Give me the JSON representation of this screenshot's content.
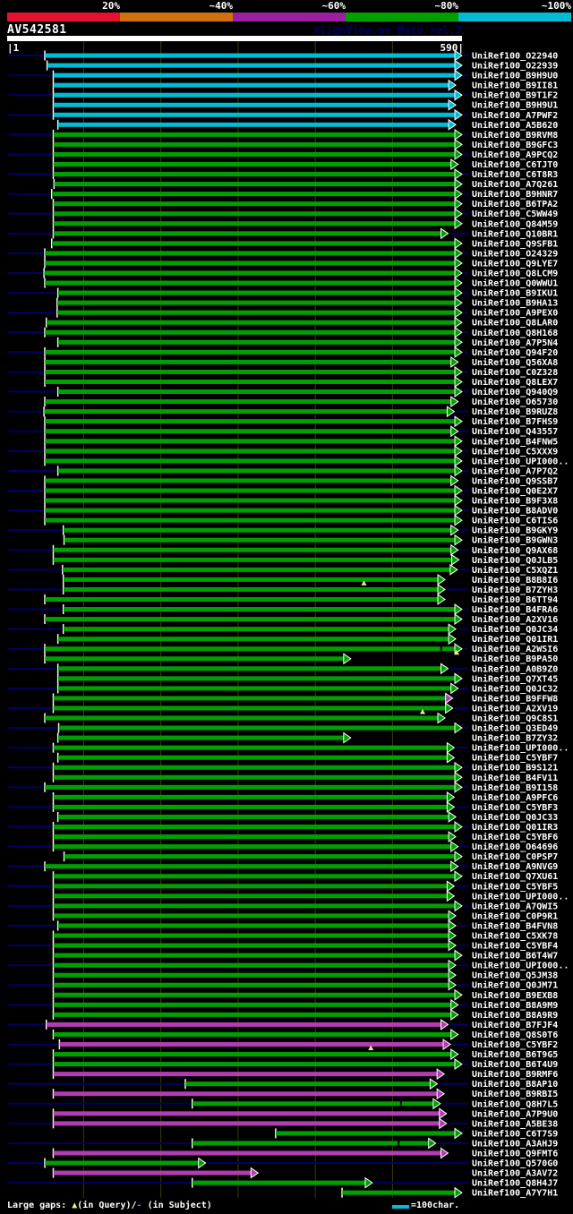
{
  "palette": {
    "red": "#e8112d",
    "orange": "#d2700e",
    "purple": "#9b1fa0",
    "green": "#00a000",
    "cyan": "#00bcd4",
    "magenta": "#b23cb2",
    "navy": "#000066",
    "grid": "#3c3c00",
    "yellow": "#eeee88",
    "dash_blue": "#4488ff",
    "white": "#ffffff"
  },
  "header": {
    "title": "AV542581",
    "watermark": "AlignView.pm Beta rel.7",
    "scale": [
      {
        "label": "20%",
        "color": "red"
      },
      {
        "label": "~40%",
        "color": "orange"
      },
      {
        "label": "~60%",
        "color": "purple"
      },
      {
        "label": "~80%",
        "color": "green"
      },
      {
        "label": "~100%",
        "color": "cyan"
      }
    ],
    "ruler": {
      "start_label": "|1",
      "end_label": "590|"
    }
  },
  "footer": {
    "gaps_prefix": "Large gaps: ",
    "query_marker": "▲",
    "gaps_mid": "(in Query)/",
    "subject_marker": "-",
    "gaps_suffix": " (in Subject)",
    "legend_text": "=100char."
  },
  "chart_data": {
    "type": "alignment-overview",
    "query": {
      "name": "AV542581",
      "start": 1,
      "end": 590
    },
    "gridlines": [
      100,
      200,
      300,
      400,
      500
    ],
    "identity_bins": [
      "20%",
      "~40%",
      "~60%",
      "~80%",
      "~100%"
    ],
    "hits": [
      {
        "id": "UniRef100_O22940",
        "color": "cyan",
        "start": 50,
        "end": 590
      },
      {
        "id": "UniRef100_O22939",
        "color": "cyan",
        "start": 53,
        "end": 590
      },
      {
        "id": "UniRef100_B9H9U0",
        "color": "cyan",
        "start": 61,
        "end": 590
      },
      {
        "id": "UniRef100_B9II81",
        "color": "cyan",
        "start": 61,
        "end": 582
      },
      {
        "id": "UniRef100_B9T1F2",
        "color": "cyan",
        "start": 61,
        "end": 590
      },
      {
        "id": "UniRef100_B9H9U1",
        "color": "cyan",
        "start": 61,
        "end": 582
      },
      {
        "id": "UniRef100_A7PWF2",
        "color": "cyan",
        "start": 61,
        "end": 590
      },
      {
        "id": "UniRef100_A5B620",
        "color": "cyan",
        "start": 67,
        "end": 582
      },
      {
        "id": "UniRef100_B9RVM8",
        "color": "green",
        "start": 61,
        "end": 590
      },
      {
        "id": "UniRef100_B9GFC3",
        "color": "green",
        "start": 61,
        "end": 590
      },
      {
        "id": "UniRef100_A9PCQ2",
        "color": "green",
        "start": 61,
        "end": 590
      },
      {
        "id": "UniRef100_C6TJT0",
        "color": "green",
        "start": 61,
        "end": 585
      },
      {
        "id": "UniRef100_C6T8R3",
        "color": "green",
        "start": 61,
        "end": 590
      },
      {
        "id": "UniRef100_A7Q261",
        "color": "green",
        "start": 62,
        "end": 590
      },
      {
        "id": "UniRef100_B9HNR7",
        "color": "green",
        "start": 59,
        "end": 590
      },
      {
        "id": "UniRef100_B6TPA2",
        "color": "green",
        "start": 61,
        "end": 590
      },
      {
        "id": "UniRef100_C5WW49",
        "color": "green",
        "start": 61,
        "end": 590
      },
      {
        "id": "UniRef100_Q84M59",
        "color": "green",
        "start": 61,
        "end": 590
      },
      {
        "id": "UniRef100_Q10BR1",
        "color": "green",
        "start": 61,
        "end": 572
      },
      {
        "id": "UniRef100_Q9SFB1",
        "color": "green",
        "start": 59,
        "end": 590
      },
      {
        "id": "UniRef100_O24329",
        "color": "green",
        "start": 50,
        "end": 590
      },
      {
        "id": "UniRef100_Q9LYE7",
        "color": "green",
        "start": 50,
        "end": 590
      },
      {
        "id": "UniRef100_Q8LCM9",
        "color": "green",
        "start": 49,
        "end": 590
      },
      {
        "id": "UniRef100_Q0WWU1",
        "color": "green",
        "start": 50,
        "end": 590
      },
      {
        "id": "UniRef100_B9IKU1",
        "color": "green",
        "start": 67,
        "end": 590
      },
      {
        "id": "UniRef100_B9HA13",
        "color": "green",
        "start": 66,
        "end": 590
      },
      {
        "id": "UniRef100_A9PEX0",
        "color": "green",
        "start": 66,
        "end": 590
      },
      {
        "id": "UniRef100_Q8LAR0",
        "color": "green",
        "start": 52,
        "end": 590
      },
      {
        "id": "UniRef100_Q8H168",
        "color": "green",
        "start": 50,
        "end": 590
      },
      {
        "id": "UniRef100_A7P5N4",
        "color": "green",
        "start": 67,
        "end": 590
      },
      {
        "id": "UniRef100_Q94F20",
        "color": "green",
        "start": 50,
        "end": 590
      },
      {
        "id": "UniRef100_Q56XA8",
        "color": "green",
        "start": 50,
        "end": 585
      },
      {
        "id": "UniRef100_C0Z328",
        "color": "green",
        "start": 50,
        "end": 590
      },
      {
        "id": "UniRef100_Q8LEX7",
        "color": "green",
        "start": 50,
        "end": 590
      },
      {
        "id": "UniRef100_Q940Q9",
        "color": "green",
        "start": 67,
        "end": 590
      },
      {
        "id": "UniRef100_O65730",
        "color": "green",
        "start": 50,
        "end": 585
      },
      {
        "id": "UniRef100_B9RUZ8",
        "color": "green",
        "start": 49,
        "end": 580
      },
      {
        "id": "UniRef100_B7FHS9",
        "color": "green",
        "start": 50,
        "end": 590
      },
      {
        "id": "UniRef100_Q43557",
        "color": "green",
        "start": 50,
        "end": 585
      },
      {
        "id": "UniRef100_B4FNW5",
        "color": "green",
        "start": 50,
        "end": 590
      },
      {
        "id": "UniRef100_C5XXX9",
        "color": "green",
        "start": 50,
        "end": 590
      },
      {
        "id": "UniRef100_UPI000..",
        "color": "green",
        "start": 50,
        "end": 590
      },
      {
        "id": "UniRef100_A7P7Q2",
        "color": "green",
        "start": 67,
        "end": 590
      },
      {
        "id": "UniRef100_Q9SSB7",
        "color": "green",
        "start": 50,
        "end": 585
      },
      {
        "id": "UniRef100_Q0E2X7",
        "color": "green",
        "start": 50,
        "end": 590
      },
      {
        "id": "UniRef100_B9F3X8",
        "color": "green",
        "start": 50,
        "end": 590
      },
      {
        "id": "UniRef100_B8ADV0",
        "color": "green",
        "start": 50,
        "end": 590
      },
      {
        "id": "UniRef100_C6TIS6",
        "color": "green",
        "start": 50,
        "end": 590
      },
      {
        "id": "UniRef100_B9GKY9",
        "color": "green",
        "start": 74,
        "end": 585
      },
      {
        "id": "UniRef100_B9GWN3",
        "color": "green",
        "start": 75,
        "end": 590
      },
      {
        "id": "UniRef100_Q9AX68",
        "color": "green",
        "start": 61,
        "end": 585
      },
      {
        "id": "UniRef100_Q0JLB5",
        "color": "green",
        "start": 61,
        "end": 586
      },
      {
        "id": "UniRef100_C5XQZ1",
        "color": "green",
        "start": 73,
        "end": 584
      },
      {
        "id": "UniRef100_B8B8I6",
        "color": "green",
        "start": 74,
        "end": 568,
        "gaps": [
          {
            "t": "query",
            "p": 463
          }
        ]
      },
      {
        "id": "UniRef100_B7ZYH3",
        "color": "green",
        "start": 74,
        "end": 568
      },
      {
        "id": "UniRef100_B6TT94",
        "color": "green",
        "start": 50,
        "end": 568
      },
      {
        "id": "UniRef100_B4FRA6",
        "color": "green",
        "start": 74,
        "end": 590
      },
      {
        "id": "UniRef100_A2XV16",
        "color": "green",
        "start": 50,
        "end": 590
      },
      {
        "id": "UniRef100_Q0JC34",
        "color": "green",
        "start": 74,
        "end": 582
      },
      {
        "id": "UniRef100_Q01IR1",
        "color": "green",
        "start": 67,
        "end": 582
      },
      {
        "id": "UniRef100_A2WSI6",
        "color": "green",
        "start": 50,
        "end": 590,
        "gaps": [
          {
            "t": "subject",
            "p": 563
          },
          {
            "t": "query",
            "p": 583
          }
        ]
      },
      {
        "id": "UniRef100_B9PA50",
        "color": "green",
        "start": 50,
        "end": 446
      },
      {
        "id": "UniRef100_A0B9Z0",
        "color": "green",
        "start": 67,
        "end": 572
      },
      {
        "id": "UniRef100_Q7XT45",
        "color": "green",
        "start": 67,
        "end": 590
      },
      {
        "id": "UniRef100_Q0JC32",
        "color": "green",
        "start": 67,
        "end": 585
      },
      {
        "id": "UniRef100_B9FFW8",
        "color": "green",
        "start": 61,
        "end": 578,
        "head": "magenta"
      },
      {
        "id": "UniRef100_A2XV19",
        "color": "green",
        "start": 61,
        "end": 578,
        "gaps": [
          {
            "t": "query",
            "p": 539
          }
        ]
      },
      {
        "id": "UniRef100_Q9C8S1",
        "color": "green",
        "start": 50,
        "end": 568
      },
      {
        "id": "UniRef100_Q3ED49",
        "color": "green",
        "start": 68,
        "end": 590
      },
      {
        "id": "UniRef100_B7ZY32",
        "color": "green",
        "start": 67,
        "end": 446
      },
      {
        "id": "UniRef100_UPI000..",
        "color": "green",
        "start": 61,
        "end": 580
      },
      {
        "id": "UniRef100_C5YBF7",
        "color": "green",
        "start": 67,
        "end": 580
      },
      {
        "id": "UniRef100_B9S121",
        "color": "green",
        "start": 61,
        "end": 590
      },
      {
        "id": "UniRef100_B4FV11",
        "color": "green",
        "start": 61,
        "end": 590
      },
      {
        "id": "UniRef100_B9I158",
        "color": "green",
        "start": 50,
        "end": 590
      },
      {
        "id": "UniRef100_A9PFC6",
        "color": "green",
        "start": 61,
        "end": 580
      },
      {
        "id": "UniRef100_C5YBF3",
        "color": "green",
        "start": 61,
        "end": 580
      },
      {
        "id": "UniRef100_Q0JC33",
        "color": "green",
        "start": 67,
        "end": 582
      },
      {
        "id": "UniRef100_Q01IR3",
        "color": "green",
        "start": 61,
        "end": 590
      },
      {
        "id": "UniRef100_C5YBF6",
        "color": "green",
        "start": 61,
        "end": 582
      },
      {
        "id": "UniRef100_O64696",
        "color": "green",
        "start": 61,
        "end": 585
      },
      {
        "id": "UniRef100_C0PSP7",
        "color": "green",
        "start": 75,
        "end": 590
      },
      {
        "id": "UniRef100_A9NVG9",
        "color": "green",
        "start": 50,
        "end": 585
      },
      {
        "id": "UniRef100_Q7XU61",
        "color": "green",
        "start": 61,
        "end": 590
      },
      {
        "id": "UniRef100_C5YBF5",
        "color": "green",
        "start": 61,
        "end": 580
      },
      {
        "id": "UniRef100_UPI000..",
        "color": "green",
        "start": 61,
        "end": 580
      },
      {
        "id": "UniRef100_A7QWI5",
        "color": "green",
        "start": 61,
        "end": 590
      },
      {
        "id": "UniRef100_C0P9R1",
        "color": "green",
        "start": 61,
        "end": 582
      },
      {
        "id": "UniRef100_B4FVN8",
        "color": "green",
        "start": 67,
        "end": 582
      },
      {
        "id": "UniRef100_C5XK78",
        "color": "green",
        "start": 61,
        "end": 582
      },
      {
        "id": "UniRef100_C5YBF4",
        "color": "green",
        "start": 61,
        "end": 582
      },
      {
        "id": "UniRef100_B6T4W7",
        "color": "green",
        "start": 61,
        "end": 590
      },
      {
        "id": "UniRef100_UPI000..",
        "color": "green",
        "start": 61,
        "end": 582
      },
      {
        "id": "UniRef100_Q5JM38",
        "color": "green",
        "start": 61,
        "end": 582
      },
      {
        "id": "UniRef100_Q0JM71",
        "color": "green",
        "start": 61,
        "end": 582
      },
      {
        "id": "UniRef100_B9EXB8",
        "color": "green",
        "start": 61,
        "end": 590
      },
      {
        "id": "UniRef100_B8A9M9",
        "color": "green",
        "start": 61,
        "end": 585
      },
      {
        "id": "UniRef100_B8A9R9",
        "color": "green",
        "start": 61,
        "end": 585
      },
      {
        "id": "UniRef100_B7FJF4",
        "color": "magenta",
        "start": 52,
        "end": 572
      },
      {
        "id": "UniRef100_Q8S0T6",
        "color": "green",
        "start": 61,
        "end": 585
      },
      {
        "id": "UniRef100_C5YBF2",
        "color": "magenta",
        "start": 69,
        "end": 575,
        "gaps": [
          {
            "t": "query",
            "p": 472
          }
        ]
      },
      {
        "id": "UniRef100_B6T9G5",
        "color": "green",
        "start": 61,
        "end": 585
      },
      {
        "id": "UniRef100_B6T4U9",
        "color": "green",
        "start": 61,
        "end": 590
      },
      {
        "id": "UniRef100_B9RMF6",
        "color": "magenta",
        "start": 61,
        "end": 567
      },
      {
        "id": "UniRef100_B8AP10",
        "color": "green",
        "start": 232,
        "end": 558
      },
      {
        "id": "UniRef100_B9RBI5",
        "color": "magenta",
        "start": 61,
        "end": 567
      },
      {
        "id": "UniRef100_Q8H7L5",
        "color": "green",
        "start": 241,
        "end": 562,
        "gaps": [
          {
            "t": "subject",
            "p": 511
          }
        ]
      },
      {
        "id": "UniRef100_A7P9U0",
        "color": "magenta",
        "start": 61,
        "end": 570
      },
      {
        "id": "UniRef100_A5BE38",
        "color": "magenta",
        "start": 61,
        "end": 570
      },
      {
        "id": "UniRef100_C6T7S9",
        "color": "green",
        "start": 349,
        "end": 590
      },
      {
        "id": "UniRef100_A3AHJ9",
        "color": "green",
        "start": 241,
        "end": 556,
        "gaps": [
          {
            "t": "subject",
            "p": 508
          }
        ]
      },
      {
        "id": "UniRef100_Q9FMT6",
        "color": "magenta",
        "start": 61,
        "end": 572
      },
      {
        "id": "UniRef100_Q570G0",
        "color": "green",
        "start": 50,
        "end": 258
      },
      {
        "id": "UniRef100_A3AV72",
        "color": "magenta",
        "start": 61,
        "end": 326
      },
      {
        "id": "UniRef100_Q8H4J7",
        "color": "green",
        "start": 241,
        "end": 474
      },
      {
        "id": "UniRef100_A7Y7H1",
        "color": "green",
        "start": 435,
        "end": 590
      }
    ]
  }
}
